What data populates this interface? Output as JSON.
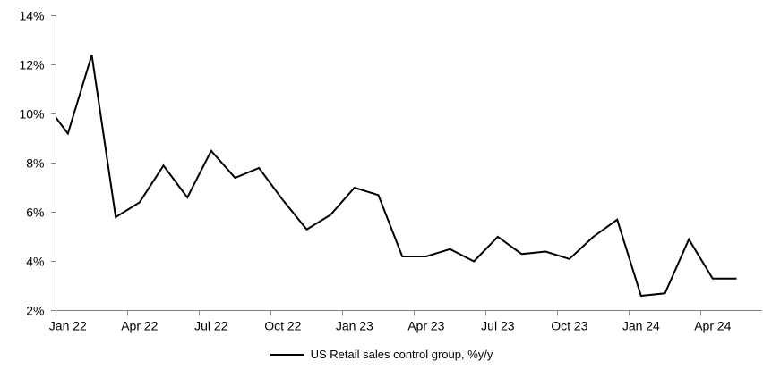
{
  "chart_data": {
    "type": "line",
    "title": "",
    "x": [
      "Jan 22",
      "Feb 22",
      "Mar 22",
      "Apr 22",
      "May 22",
      "Jun 22",
      "Jul 22",
      "Aug 22",
      "Sep 22",
      "Oct 22",
      "Nov 22",
      "Dec 22",
      "Jan 23",
      "Feb 23",
      "Mar 23",
      "Apr 23",
      "May 23",
      "Jun 23",
      "Jul 23",
      "Aug 23",
      "Sep 23",
      "Oct 23",
      "Nov 23",
      "Dec 23",
      "Jan 24",
      "Feb 24",
      "Mar 24",
      "Apr 24",
      "May 24"
    ],
    "series": [
      {
        "name": "US Retail sales control group, %y/y",
        "color": "#000000",
        "line_width": 2,
        "values": [
          9.2,
          12.4,
          5.8,
          6.4,
          7.9,
          6.6,
          8.5,
          7.4,
          7.8,
          6.5,
          5.3,
          5.9,
          7.0,
          6.7,
          4.2,
          4.2,
          4.5,
          4.0,
          5.0,
          4.3,
          4.4,
          4.1,
          5.0,
          5.7,
          2.6,
          2.7,
          4.9,
          3.3,
          3.3
        ]
      }
    ],
    "clipped_lead_in": {
      "month": "Dec 21",
      "approx_value": 10.5,
      "note": "line is clipped at the left axis, visible entering the plot at about 9.9%"
    },
    "xlabel": "",
    "ylabel": "",
    "ylim": [
      2,
      14
    ],
    "y_unit": "%",
    "y_axis_tick_labels": [
      "14%",
      "12%",
      "10%",
      "8%",
      "6%",
      "4%",
      "2%"
    ],
    "y_axis_tick_values": [
      14,
      12,
      10,
      8,
      6,
      4,
      2
    ],
    "x_axis_tick_labels": [
      "Jan 22",
      "Apr 22",
      "Jul 22",
      "Oct 22",
      "Jan 23",
      "Apr 23",
      "Jul 23",
      "Oct 23",
      "Jan 24",
      "Apr 24"
    ],
    "x_tick_interval_months": 3,
    "grid": false,
    "legend_label": "US Retail sales control group, %y/y",
    "legend_position": "bottom-center",
    "axis_color": "#808080",
    "text_color": "#000000",
    "background_color": "#ffffff"
  }
}
